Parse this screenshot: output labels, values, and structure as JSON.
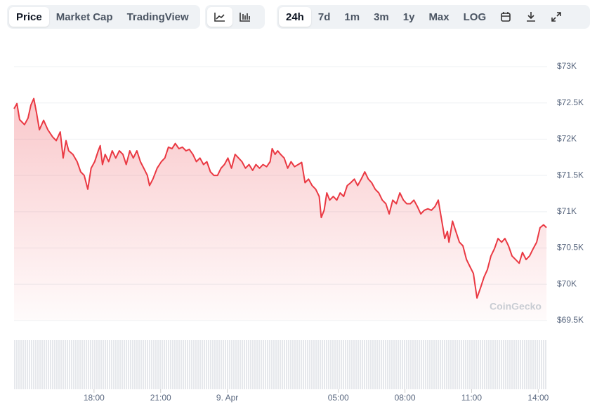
{
  "toolbar": {
    "views": [
      "Price",
      "Market Cap",
      "TradingView"
    ],
    "active_view": "Price",
    "ranges": [
      "24h",
      "7d",
      "1m",
      "3m",
      "1y",
      "Max",
      "LOG"
    ],
    "active_range": "24h"
  },
  "chart_data": {
    "type": "line",
    "watermark": "CoinGecko",
    "color": "#ea3943",
    "area": true,
    "grid": true,
    "x": [
      -9.6,
      -9.47,
      -9.35,
      -9.13,
      -8.97,
      -8.84,
      -8.71,
      -8.59,
      -8.46,
      -8.27,
      -8.08,
      -7.86,
      -7.7,
      -7.52,
      -7.39,
      -7.26,
      -7.14,
      -6.95,
      -6.76,
      -6.6,
      -6.44,
      -6.28,
      -6.13,
      -5.97,
      -5.81,
      -5.72,
      -5.62,
      -5.5,
      -5.34,
      -5.18,
      -5.02,
      -4.86,
      -4.7,
      -4.55,
      -4.39,
      -4.23,
      -4.07,
      -3.91,
      -3.76,
      -3.6,
      -3.5,
      -3.35,
      -3.16,
      -2.97,
      -2.81,
      -2.65,
      -2.49,
      -2.34,
      -2.18,
      -2.02,
      -1.86,
      -1.71,
      -1.55,
      -1.39,
      -1.23,
      -1.07,
      -0.92,
      -0.76,
      -0.6,
      -0.44,
      -0.28,
      -0.13,
      0.03,
      0.19,
      0.35,
      0.51,
      0.66,
      0.82,
      0.98,
      1.14,
      1.29,
      1.45,
      1.61,
      1.77,
      1.93,
      2.02,
      2.15,
      2.27,
      2.4,
      2.56,
      2.72,
      2.87,
      3.03,
      3.19,
      3.35,
      3.5,
      3.66,
      3.82,
      3.98,
      4.14,
      4.23,
      4.36,
      4.48,
      4.61,
      4.77,
      4.93,
      5.08,
      5.24,
      5.4,
      5.56,
      5.72,
      5.87,
      6.03,
      6.19,
      6.35,
      6.5,
      6.66,
      6.82,
      6.98,
      7.14,
      7.29,
      7.45,
      7.61,
      7.77,
      7.93,
      8.08,
      8.24,
      8.4,
      8.56,
      8.71,
      8.87,
      9.03,
      9.19,
      9.35,
      9.5,
      9.66,
      9.79,
      9.91,
      9.98,
      10.14,
      10.29,
      10.45,
      10.61,
      10.77,
      10.93,
      11.08,
      11.24,
      11.4,
      11.56,
      11.71,
      11.87,
      12.03,
      12.19,
      12.35,
      12.5,
      12.66,
      12.82,
      12.98,
      13.14,
      13.29,
      13.45,
      13.61,
      13.77,
      13.93,
      14.08,
      14.24,
      14.37
    ],
    "values": [
      72420,
      72490,
      72270,
      72200,
      72290,
      72470,
      72560,
      72370,
      72130,
      72260,
      72130,
      72030,
      71980,
      72100,
      71740,
      71980,
      71840,
      71790,
      71690,
      71550,
      71500,
      71310,
      71600,
      71690,
      71840,
      71910,
      71650,
      71790,
      71690,
      71840,
      71740,
      71840,
      71790,
      71650,
      71840,
      71740,
      71840,
      71690,
      71600,
      71500,
      71360,
      71450,
      71600,
      71690,
      71740,
      71890,
      71870,
      71940,
      71870,
      71890,
      71840,
      71860,
      71790,
      71690,
      71740,
      71650,
      71690,
      71550,
      71500,
      71500,
      71600,
      71650,
      71740,
      71600,
      71790,
      71740,
      71690,
      71600,
      71650,
      71570,
      71650,
      71600,
      71650,
      71620,
      71690,
      71870,
      71790,
      71840,
      71790,
      71740,
      71600,
      71690,
      71620,
      71650,
      71680,
      71400,
      71450,
      71360,
      71310,
      71210,
      70920,
      71020,
      71260,
      71160,
      71210,
      71160,
      71260,
      71210,
      71360,
      71400,
      71450,
      71360,
      71450,
      71550,
      71450,
      71400,
      71310,
      71260,
      71160,
      71110,
      70970,
      71160,
      71110,
      71260,
      71160,
      71110,
      71110,
      71160,
      71070,
      70970,
      71020,
      71040,
      71020,
      71070,
      71160,
      70870,
      70630,
      70730,
      70580,
      70870,
      70730,
      70580,
      70530,
      70340,
      70240,
      70150,
      69810,
      69950,
      70100,
      70200,
      70390,
      70490,
      70630,
      70580,
      70630,
      70530,
      70390,
      70340,
      70290,
      70440,
      70340,
      70390,
      70490,
      70580,
      70780,
      70820,
      70780
    ],
    "xlim": [
      -9.6,
      14.4
    ],
    "xticks": [
      {
        "value": -6,
        "label": "18:00"
      },
      {
        "value": -3,
        "label": "21:00"
      },
      {
        "value": 0,
        "label": "9. Apr"
      },
      {
        "value": 5,
        "label": "05:00"
      },
      {
        "value": 8,
        "label": "08:00"
      },
      {
        "value": 11,
        "label": "11:00"
      },
      {
        "value": 14,
        "label": "14:00"
      }
    ],
    "ylim": [
      69500,
      73000
    ],
    "yticks": [
      {
        "value": 69500,
        "label": "$69.5K"
      },
      {
        "value": 70000,
        "label": "$70K"
      },
      {
        "value": 70500,
        "label": "$70.5K"
      },
      {
        "value": 71000,
        "label": "$71K"
      },
      {
        "value": 71500,
        "label": "$71.5K"
      },
      {
        "value": 72000,
        "label": "$72K"
      },
      {
        "value": 72500,
        "label": "$72.5K"
      },
      {
        "value": 73000,
        "label": "$73K"
      }
    ]
  }
}
